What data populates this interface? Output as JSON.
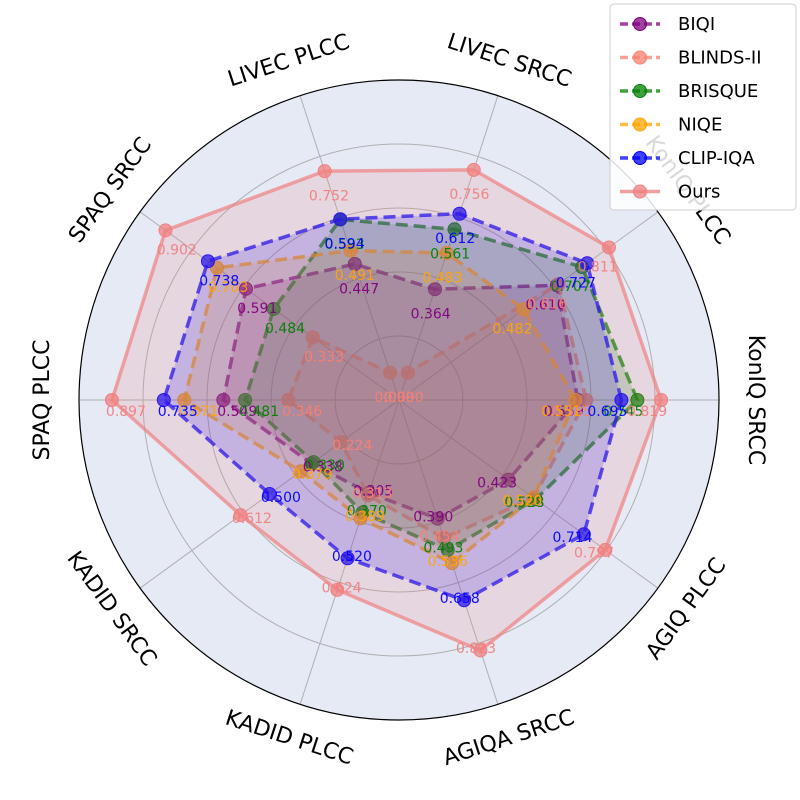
{
  "chart_data": {
    "type": "radar",
    "axes": [
      "KonIQ SRCC",
      "KonIQ PLCC",
      "LIVEC SRCC",
      "LIVEC PLCC",
      "SPAQ SRCC",
      "SPAQ PLCC",
      "KADID SRCC",
      "KADID PLCC",
      "AGIQA SRCC",
      "AGIQ PLCC"
    ],
    "rlim": [
      0,
      1
    ],
    "grid": true,
    "legend_position": "top-right",
    "series": [
      {
        "name": "BIQI",
        "color": "#800080",
        "style": "dashed",
        "values": [
          0.559,
          0.61,
          0.364,
          0.447,
          0.591,
          0.549,
          0.338,
          0.305,
          0.39,
          0.423
        ]
      },
      {
        "name": "BLINDS-II",
        "color": "#fa8072",
        "style": "dashed",
        "values": [
          0.585,
          0.616,
          0.09,
          0.09,
          0.333,
          0.346,
          0.224,
          0.313,
          0.454,
          0.52
        ]
      },
      {
        "name": "BRISQUE",
        "color": "#008000",
        "style": "dashed",
        "values": [
          0.745,
          0.707,
          0.561,
          0.593,
          0.484,
          0.481,
          0.33,
          0.37,
          0.493,
          0.528
        ]
      },
      {
        "name": "NIQE",
        "color": "#ffa500",
        "style": "dashed",
        "values": [
          0.551,
          0.482,
          0.483,
          0.491,
          0.703,
          0.671,
          0.379,
          0.389,
          0.536,
          0.52
        ]
      },
      {
        "name": "CLIP-IQA",
        "color": "#0000ff",
        "style": "dashed",
        "values": [
          0.695,
          0.727,
          0.612,
          0.594,
          0.738,
          0.735,
          0.5,
          0.52,
          0.658,
          0.714
        ]
      },
      {
        "name": "Ours",
        "color": "#f08080",
        "style": "solid",
        "values": [
          0.819,
          0.811,
          0.756,
          0.752,
          0.902,
          0.897,
          0.612,
          0.624,
          0.823,
          0.797
        ]
      }
    ]
  }
}
